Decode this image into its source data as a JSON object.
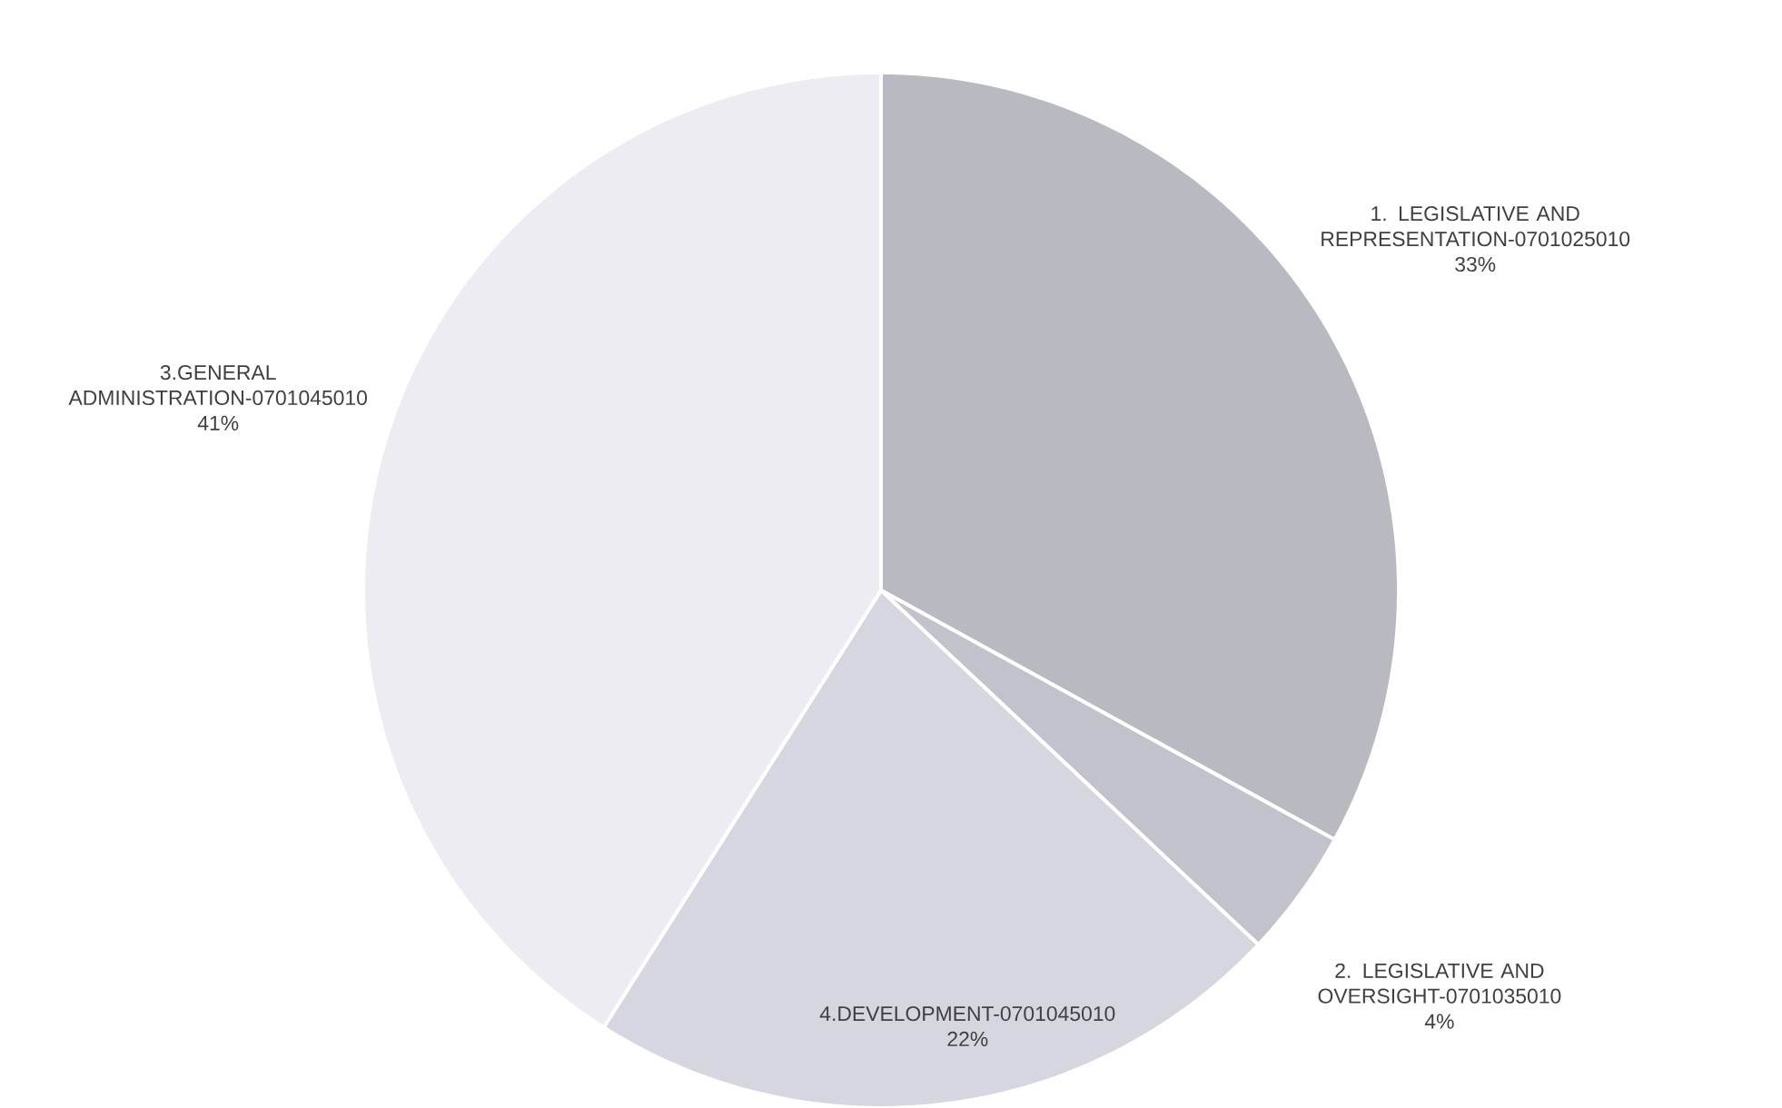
{
  "chart_data": {
    "type": "pie",
    "categories": [
      "1. LEGISLATIVE AND REPRESENTATION-0701025010",
      "2. LEGISLATIVE AND OVERSIGHT-0701035010",
      "4.DEVELOPMENT-0701045010",
      "3.GENERAL ADMINISTRATION-0701045010"
    ],
    "values": [
      33,
      4,
      22,
      41
    ],
    "value_labels": [
      "33%",
      "4%",
      "22%",
      "41%"
    ],
    "colors": [
      "#b9b9c2",
      "#c2c2cc",
      "#d6d6e0",
      "#ececf2"
    ]
  }
}
